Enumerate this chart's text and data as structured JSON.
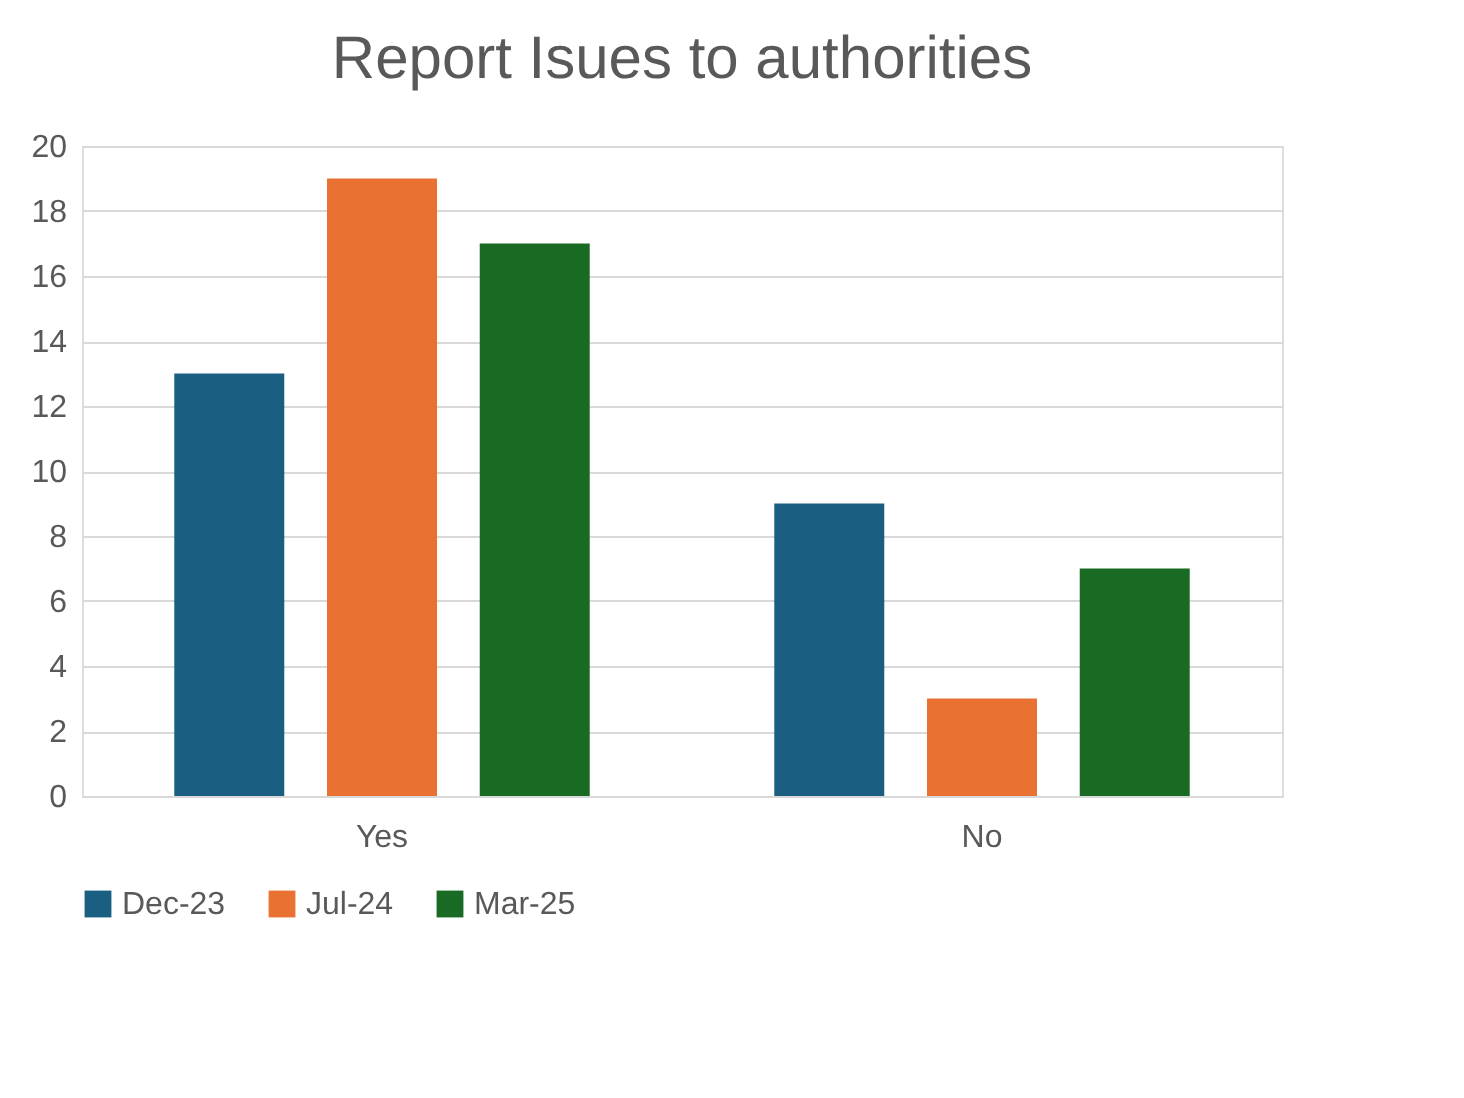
{
  "chart_data": {
    "type": "bar",
    "title": "Report Isues to authorities",
    "categories": [
      "Yes",
      "No"
    ],
    "series": [
      {
        "name": "Dec-23",
        "color": "#1a5f82",
        "values": [
          13,
          9
        ]
      },
      {
        "name": "Jul-24",
        "color": "#e97132",
        "values": [
          19,
          3
        ]
      },
      {
        "name": "Mar-25",
        "color": "#196b24",
        "values": [
          17,
          7
        ]
      }
    ],
    "ylim": [
      0,
      20
    ],
    "yticks": [
      0,
      2,
      4,
      6,
      8,
      10,
      12,
      14,
      16,
      18,
      20
    ],
    "grid": "y",
    "legend": "bottom"
  }
}
